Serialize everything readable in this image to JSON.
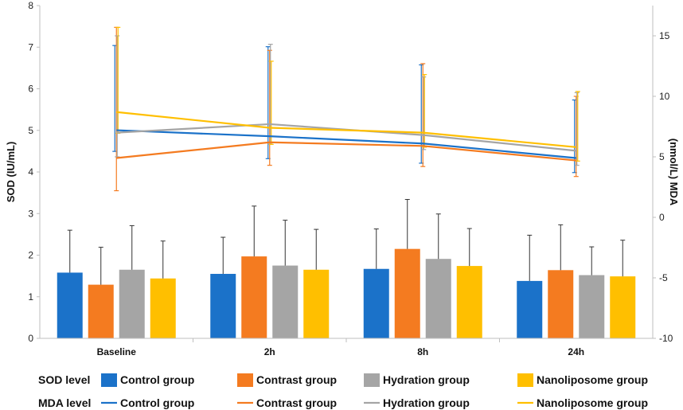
{
  "chart_data": {
    "type": "bar+line",
    "categories": [
      "Baseline",
      "2h",
      "8h",
      "24h"
    ],
    "left_axis": {
      "label": "SOD (IU/mL)",
      "ylim": [
        0,
        8
      ],
      "ticks": [
        0,
        1,
        2,
        3,
        4,
        5,
        6,
        7,
        8
      ]
    },
    "right_axis": {
      "label": "(nmol/L) MDA",
      "ylim": [
        -10,
        17.5
      ],
      "ticks": [
        -10,
        -5,
        0,
        5,
        10,
        15
      ]
    },
    "groups": [
      {
        "name": "Control group",
        "color": "#1b72c9"
      },
      {
        "name": "Contrast group",
        "color": "#f47b20"
      },
      {
        "name": "Hydration group",
        "color": "#a5a5a5"
      },
      {
        "name": "Nanoliposome group",
        "color": "#ffbf00"
      }
    ],
    "sod_series": [
      {
        "name": "Control group",
        "values": [
          1.58,
          1.55,
          1.67,
          1.38
        ],
        "errors": [
          1.02,
          0.88,
          0.96,
          1.1
        ]
      },
      {
        "name": "Contrast group",
        "values": [
          1.29,
          1.97,
          2.15,
          1.64
        ],
        "errors": [
          0.9,
          1.21,
          1.19,
          1.09
        ]
      },
      {
        "name": "Hydration group",
        "values": [
          1.65,
          1.75,
          1.91,
          1.52
        ],
        "errors": [
          1.06,
          1.09,
          1.08,
          0.68
        ]
      },
      {
        "name": "Nanoliposome group",
        "values": [
          1.44,
          1.65,
          1.74,
          1.49
        ],
        "errors": [
          0.9,
          0.97,
          0.9,
          0.87
        ]
      }
    ],
    "mda_series": [
      {
        "name": "Control group",
        "values": [
          7.2,
          6.7,
          6.1,
          4.9
        ],
        "errors": [
          7.0,
          7.4,
          6.5,
          4.8
        ]
      },
      {
        "name": "Contrast group",
        "values": [
          4.9,
          6.2,
          5.9,
          4.7
        ],
        "errors": [
          10.8,
          7.6,
          6.8,
          5.3
        ]
      },
      {
        "name": "Hydration group",
        "values": [
          7.0,
          7.7,
          6.8,
          5.5
        ],
        "errors": [
          8.0,
          6.6,
          4.8,
          4.8
        ]
      },
      {
        "name": "Nanoliposome group",
        "values": [
          8.7,
          7.4,
          7.0,
          5.8
        ],
        "errors": [
          7.0,
          5.5,
          4.8,
          4.6
        ]
      }
    ]
  },
  "legend": {
    "sod_label": "SOD level",
    "mda_label": "MDA level",
    "items": [
      "Control group",
      "Contrast group",
      "Hydration group",
      "Nanoliposome group"
    ]
  }
}
